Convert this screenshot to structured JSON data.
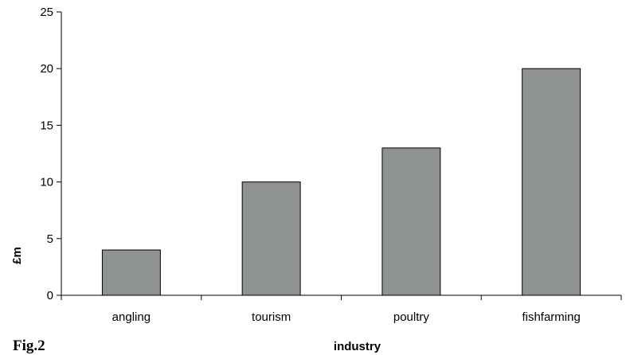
{
  "figure_label": "Fig.2",
  "chart_data": {
    "type": "bar",
    "categories": [
      "angling",
      "tourism",
      "poultry",
      "fishfarming"
    ],
    "values": [
      4,
      10,
      13,
      20
    ],
    "xlabel": "industry",
    "ylabel": "£m",
    "ylim": [
      0,
      25
    ],
    "yticks": [
      0,
      5,
      10,
      15,
      20,
      25
    ],
    "grid": false,
    "bar_color": "#8f938f",
    "bar_edge_color": "#000000"
  }
}
